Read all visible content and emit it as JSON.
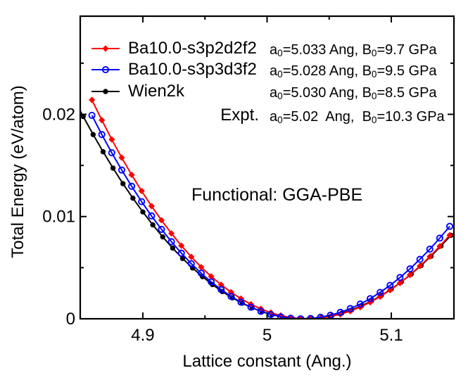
{
  "chart_data": {
    "type": "line",
    "xlabel": "Lattice constant (Ang.)",
    "ylabel": "Total Energy (eV/atom)",
    "annotation": "Functional: GGA-PBE",
    "x_range": [
      4.8496,
      5.1504
    ],
    "y_range": [
      0,
      0.0296
    ],
    "grid": false,
    "legend_position": "top-left-inside",
    "x_major_ticks": [
      {
        "v": 4.9,
        "label": "4.9"
      },
      {
        "v": 5.0,
        "label": "5"
      },
      {
        "v": 5.1,
        "label": "5.1"
      }
    ],
    "x_minor_ticks": [
      4.95,
      5.05
    ],
    "y_major_ticks": [
      {
        "v": 0,
        "label": "0"
      },
      {
        "v": 0.01,
        "label": "0.01"
      },
      {
        "v": 0.02,
        "label": "0.02"
      }
    ],
    "y_minor_ticks": [
      0.005,
      0.015,
      0.025
    ],
    "draw_order": [
      2,
      0,
      1
    ],
    "series": [
      {
        "name": "Ba10.0-s3p2d2f2",
        "color": "#ff0000",
        "marker": "diamond-filled",
        "equilibrium_a0_ang": 5.033,
        "bulk_modulus_gpa": 9.7,
        "points": [
          [
            4.859,
            0.02141
          ],
          [
            4.867,
            0.01943
          ],
          [
            4.875,
            0.01754
          ],
          [
            4.883,
            0.01576
          ],
          [
            4.891,
            0.01408
          ],
          [
            4.899,
            0.0125
          ],
          [
            4.907,
            0.01102
          ],
          [
            4.915,
            0.00964
          ],
          [
            4.923,
            0.00835
          ],
          [
            4.931,
            0.00715
          ],
          [
            4.939,
            0.00606
          ],
          [
            4.947,
            0.00505
          ],
          [
            4.955,
            0.00414
          ],
          [
            4.963,
            0.00333
          ],
          [
            4.971,
            0.0026
          ],
          [
            4.979,
            0.00197
          ],
          [
            4.987,
            0.00142
          ],
          [
            4.995,
            0.00097
          ],
          [
            5.003,
            0.0006
          ],
          [
            5.011,
            0.00032
          ],
          [
            5.019,
            0.00013
          ],
          [
            5.027,
            2e-05
          ],
          [
            5.035,
            0.0
          ],
          [
            5.043,
            7e-05
          ],
          [
            5.051,
            0.00022
          ],
          [
            5.059,
            0.00044
          ],
          [
            5.067,
            0.00075
          ],
          [
            5.075,
            0.00114
          ],
          [
            5.083,
            0.00162
          ],
          [
            5.091,
            0.00217
          ],
          [
            5.099,
            0.0028
          ],
          [
            5.107,
            0.0035
          ],
          [
            5.115,
            0.00429
          ],
          [
            5.123,
            0.00515
          ],
          [
            5.131,
            0.00608
          ],
          [
            5.139,
            0.00709
          ],
          [
            5.147,
            0.00818
          ]
        ]
      },
      {
        "name": "Ba10.0-s3p3d3f2",
        "color": "#0000ff",
        "marker": "circle-open",
        "equilibrium_a0_ang": 5.028,
        "bulk_modulus_gpa": 9.5,
        "points": [
          [
            4.859,
            0.0199
          ],
          [
            4.867,
            0.01802
          ],
          [
            4.875,
            0.01624
          ],
          [
            4.883,
            0.01455
          ],
          [
            4.891,
            0.01296
          ],
          [
            4.899,
            0.01146
          ],
          [
            4.907,
            0.01006
          ],
          [
            4.915,
            0.00875
          ],
          [
            4.923,
            0.00754
          ],
          [
            4.931,
            0.00642
          ],
          [
            4.939,
            0.00539
          ],
          [
            4.947,
            0.00446
          ],
          [
            4.955,
            0.00361
          ],
          [
            4.963,
            0.00286
          ],
          [
            4.971,
            0.00219
          ],
          [
            4.979,
            0.00162
          ],
          [
            4.987,
            0.00113
          ],
          [
            4.995,
            0.00073
          ],
          [
            5.003,
            0.00042
          ],
          [
            5.011,
            0.00019
          ],
          [
            5.019,
            5e-05
          ],
          [
            5.027,
            0.0
          ],
          [
            5.035,
            3e-05
          ],
          [
            5.043,
            0.00015
          ],
          [
            5.051,
            0.00035
          ],
          [
            5.059,
            0.00063
          ],
          [
            5.067,
            0.001
          ],
          [
            5.075,
            0.00144
          ],
          [
            5.083,
            0.00197
          ],
          [
            5.091,
            0.00258
          ],
          [
            5.099,
            0.00327
          ],
          [
            5.107,
            0.00404
          ],
          [
            5.115,
            0.00488
          ],
          [
            5.123,
            0.00581
          ],
          [
            5.131,
            0.00681
          ],
          [
            5.139,
            0.00789
          ],
          [
            5.147,
            0.00904
          ]
        ]
      },
      {
        "name": "Wien2k",
        "color": "#000000",
        "marker": "circle-filled",
        "equilibrium_a0_ang": 5.03,
        "bulk_modulus_gpa": 8.5,
        "points": [
          [
            4.844,
            0.02164
          ],
          [
            4.852,
            0.01979
          ],
          [
            4.86,
            0.01802
          ],
          [
            4.868,
            0.01634
          ],
          [
            4.876,
            0.01474
          ],
          [
            4.884,
            0.01322
          ],
          [
            4.892,
            0.0118
          ],
          [
            4.9,
            0.01045
          ],
          [
            4.908,
            0.00919
          ],
          [
            4.916,
            0.00801
          ],
          [
            4.924,
            0.00691
          ],
          [
            4.932,
            0.0059
          ],
          [
            4.94,
            0.00497
          ],
          [
            4.948,
            0.00412
          ],
          [
            4.956,
            0.00335
          ],
          [
            4.964,
            0.00266
          ],
          [
            4.972,
            0.00205
          ],
          [
            4.98,
            0.00152
          ],
          [
            4.988,
            0.00107
          ],
          [
            4.996,
            0.0007
          ],
          [
            5.004,
            0.00041
          ],
          [
            5.012,
            0.0002
          ],
          [
            5.02,
            6e-05
          ],
          [
            5.028,
            0.0
          ],
          [
            5.036,
            2e-05
          ],
          [
            5.044,
            0.00012
          ],
          [
            5.052,
            0.00029
          ],
          [
            5.06,
            0.00054
          ],
          [
            5.068,
            0.00086
          ],
          [
            5.076,
            0.00126
          ],
          [
            5.084,
            0.00174
          ],
          [
            5.092,
            0.00228
          ],
          [
            5.1,
            0.00291
          ],
          [
            5.108,
            0.0036
          ],
          [
            5.116,
            0.00437
          ],
          [
            5.124,
            0.00521
          ],
          [
            5.132,
            0.00613
          ],
          [
            5.14,
            0.00712
          ],
          [
            5.148,
            0.00817
          ]
        ]
      }
    ]
  },
  "legend": {
    "sym_a": "a",
    "sym_b": "B",
    "sym_sub": "0",
    "rows": [
      {
        "name": "Ba10.0-s3p2d2f2",
        "color": "#ff0000",
        "marker": "diamond-filled",
        "v1": "=5.033 Ang, ",
        "v2": "=9.7 GPa"
      },
      {
        "name": "Ba10.0-s3p3d3f2",
        "color": "#0000ff",
        "marker": "circle-open",
        "v1": "=5.028 Ang, ",
        "v2": "=9.5 GPa"
      },
      {
        "name": "Wien2k",
        "color": "#000000",
        "marker": "circle-filled",
        "v1": "=5.030 Ang, ",
        "v2": "=8.5 GPa"
      }
    ],
    "expt": {
      "label": "Expt.",
      "v1": "=5.02  Ang,  ",
      "v2": "=10.3 GPa"
    }
  }
}
